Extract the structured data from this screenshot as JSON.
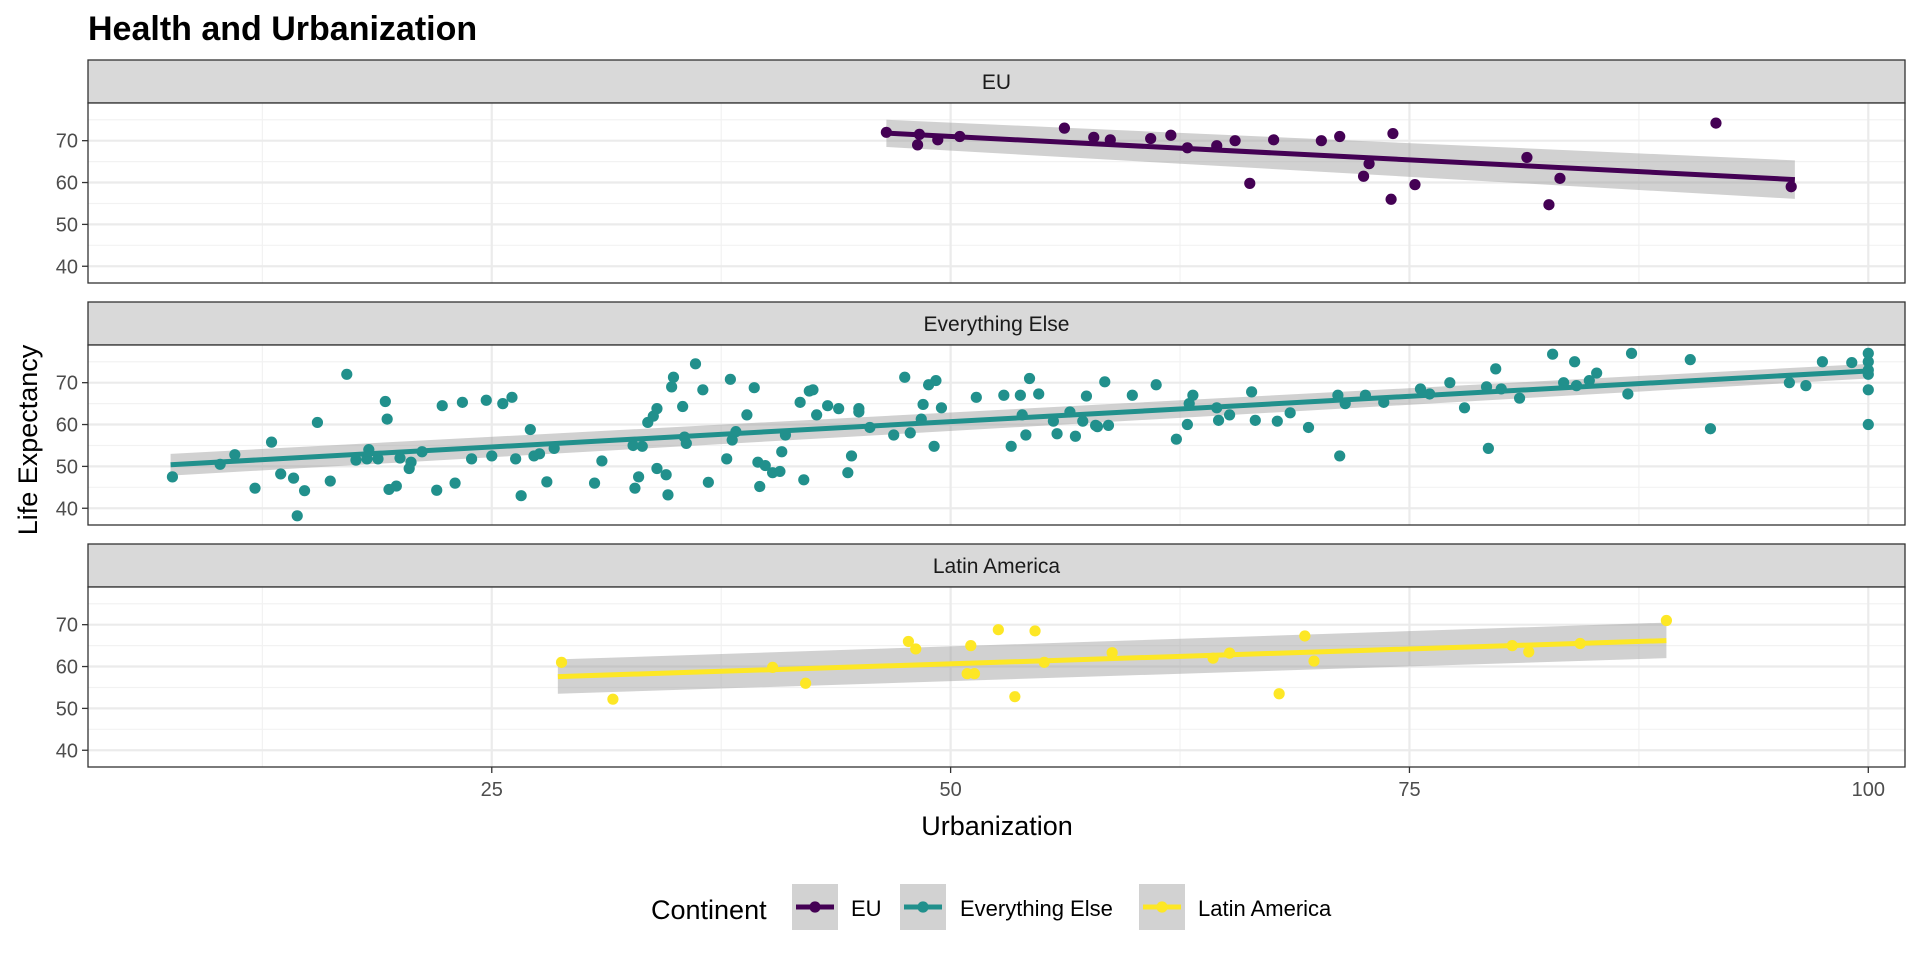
{
  "chart_data": {
    "type": "scatter",
    "title": "Health and Urbanization",
    "xlabel": "Urbanization",
    "ylabel": "Life Expectancy",
    "xlim": [
      3,
      102
    ],
    "ylim": [
      36,
      79
    ],
    "x_ticks": [
      25,
      50,
      75,
      100
    ],
    "y_ticks": [
      40,
      50,
      60,
      70
    ],
    "grid": true,
    "legend": {
      "title": "Continent",
      "position": "bottom"
    },
    "facets": [
      {
        "name": "EU",
        "color": "#440154",
        "trend": {
          "x": [
            46.5,
            96
          ],
          "y": [
            71.8,
            60.7
          ]
        },
        "band": {
          "x": [
            46.5,
            96
          ],
          "upper": [
            75.0,
            65.3
          ],
          "lower": [
            68.5,
            56.1
          ]
        },
        "points": [
          [
            46.5,
            72
          ],
          [
            48.3,
            71.5
          ],
          [
            48.2,
            69
          ],
          [
            49.3,
            70.2
          ],
          [
            50.5,
            71
          ],
          [
            56.2,
            73
          ],
          [
            57.8,
            70.8
          ],
          [
            58.7,
            70.2
          ],
          [
            60.9,
            70.5
          ],
          [
            62,
            71.3
          ],
          [
            62.9,
            68.3
          ],
          [
            64.5,
            68.8
          ],
          [
            65.5,
            70
          ],
          [
            66.3,
            59.8
          ],
          [
            67.6,
            70.2
          ],
          [
            70.2,
            70
          ],
          [
            71.2,
            71
          ],
          [
            72.5,
            61.5
          ],
          [
            72.8,
            64.5
          ],
          [
            74,
            56
          ],
          [
            74.1,
            71.7
          ],
          [
            75.3,
            59.5
          ],
          [
            81.4,
            66
          ],
          [
            82.6,
            54.7
          ],
          [
            83.2,
            61
          ],
          [
            91.7,
            74.2
          ],
          [
            95.8,
            59
          ]
        ]
      },
      {
        "name": "Everything Else",
        "color": "#21908C",
        "trend": {
          "x": [
            7.5,
            100
          ],
          "y": [
            50.4,
            72.8
          ]
        },
        "band": {
          "x": [
            7.5,
            100
          ],
          "upper": [
            53.0,
            74.5
          ],
          "lower": [
            47.8,
            71.0
          ]
        },
        "points": [
          [
            7.6,
            47.5
          ],
          [
            10.2,
            50.5
          ],
          [
            11,
            52.8
          ],
          [
            12.1,
            44.8
          ],
          [
            13,
            55.8
          ],
          [
            13.5,
            48.2
          ],
          [
            14.2,
            47.2
          ],
          [
            14.4,
            38.2
          ],
          [
            14.8,
            44.2
          ],
          [
            15.5,
            60.5
          ],
          [
            16.2,
            46.5
          ],
          [
            17.1,
            72
          ],
          [
            17.6,
            51.5
          ],
          [
            18.2,
            51.8
          ],
          [
            18.3,
            54
          ],
          [
            18.8,
            51.8
          ],
          [
            19.2,
            65.5
          ],
          [
            19.3,
            61.3
          ],
          [
            19.4,
            44.5
          ],
          [
            19.8,
            45.3
          ],
          [
            20,
            52
          ],
          [
            20.5,
            49.5
          ],
          [
            20.6,
            51
          ],
          [
            21.2,
            53.5
          ],
          [
            22,
            44.3
          ],
          [
            22.3,
            64.5
          ],
          [
            23,
            46
          ],
          [
            23.4,
            65.3
          ],
          [
            23.9,
            51.8
          ],
          [
            24.7,
            65.8
          ],
          [
            25,
            52.5
          ],
          [
            25.6,
            65
          ],
          [
            26.1,
            66.5
          ],
          [
            26.3,
            51.8
          ],
          [
            26.6,
            43
          ],
          [
            27.1,
            58.8
          ],
          [
            27.3,
            52.5
          ],
          [
            27.6,
            53
          ],
          [
            28,
            46.3
          ],
          [
            28.4,
            54.3
          ],
          [
            30.6,
            46
          ],
          [
            31,
            51.3
          ],
          [
            32.7,
            55
          ],
          [
            32.8,
            44.8
          ],
          [
            33,
            47.5
          ],
          [
            33.2,
            54.8
          ],
          [
            33.5,
            60.5
          ],
          [
            33.8,
            62
          ],
          [
            34,
            63.8
          ],
          [
            34,
            49.5
          ],
          [
            34.5,
            48
          ],
          [
            34.6,
            43.2
          ],
          [
            34.8,
            69
          ],
          [
            34.9,
            71.3
          ],
          [
            35.4,
            64.3
          ],
          [
            35.5,
            57
          ],
          [
            35.6,
            55.5
          ],
          [
            36.1,
            74.5
          ],
          [
            36.5,
            68.3
          ],
          [
            36.8,
            46.2
          ],
          [
            37.8,
            51.8
          ],
          [
            38,
            70.8
          ],
          [
            38.1,
            56.3
          ],
          [
            38.3,
            58.3
          ],
          [
            38.9,
            62.3
          ],
          [
            39.3,
            68.8
          ],
          [
            39.5,
            51
          ],
          [
            39.6,
            45.2
          ],
          [
            39.9,
            50.2
          ],
          [
            40.3,
            48.5
          ],
          [
            40.7,
            48.8
          ],
          [
            40.8,
            53.5
          ],
          [
            41,
            57.5
          ],
          [
            41.8,
            65.3
          ],
          [
            42,
            46.8
          ],
          [
            42.3,
            68
          ],
          [
            42.5,
            68.3
          ],
          [
            42.7,
            62.3
          ],
          [
            43.3,
            64.5
          ],
          [
            43.9,
            63.8
          ],
          [
            44.4,
            48.5
          ],
          [
            44.6,
            52.5
          ],
          [
            45,
            63
          ],
          [
            45,
            63.8
          ],
          [
            45.6,
            59.3
          ],
          [
            46.9,
            57.5
          ],
          [
            47.5,
            71.3
          ],
          [
            47.8,
            58
          ],
          [
            48.4,
            61.3
          ],
          [
            48.5,
            64.8
          ],
          [
            48.8,
            69.5
          ],
          [
            49.1,
            54.8
          ],
          [
            49.2,
            70.5
          ],
          [
            49.5,
            64
          ],
          [
            51.4,
            66.5
          ],
          [
            52.9,
            67
          ],
          [
            53.3,
            54.8
          ],
          [
            53.8,
            67
          ],
          [
            53.9,
            62.3
          ],
          [
            54.1,
            57.5
          ],
          [
            54.3,
            71
          ],
          [
            54.8,
            67.3
          ],
          [
            55.6,
            60.8
          ],
          [
            55.8,
            57.8
          ],
          [
            56.5,
            63
          ],
          [
            56.8,
            57.2
          ],
          [
            57.2,
            60.8
          ],
          [
            57.4,
            66.8
          ],
          [
            57.9,
            59.8
          ],
          [
            58,
            59.5
          ],
          [
            58.4,
            70.2
          ],
          [
            58.6,
            59.8
          ],
          [
            59.9,
            67
          ],
          [
            61.2,
            69.5
          ],
          [
            62.3,
            56.5
          ],
          [
            62.9,
            60
          ],
          [
            63,
            65
          ],
          [
            63.2,
            67
          ],
          [
            64.5,
            64
          ],
          [
            64.6,
            61
          ],
          [
            65.2,
            62.3
          ],
          [
            66.4,
            67.8
          ],
          [
            66.6,
            61
          ],
          [
            67.8,
            60.8
          ],
          [
            68.5,
            62.8
          ],
          [
            69.5,
            59.3
          ],
          [
            71.1,
            67
          ],
          [
            71.2,
            52.5
          ],
          [
            71.5,
            65
          ],
          [
            72.6,
            67
          ],
          [
            73.6,
            65.3
          ],
          [
            75.6,
            68.5
          ],
          [
            76.1,
            67.3
          ],
          [
            77.2,
            70
          ],
          [
            78,
            64
          ],
          [
            79.2,
            69
          ],
          [
            79.3,
            54.3
          ],
          [
            79.7,
            73.3
          ],
          [
            80,
            68.5
          ],
          [
            81,
            66.3
          ],
          [
            82.8,
            76.8
          ],
          [
            83.4,
            70
          ],
          [
            84,
            75
          ],
          [
            84.1,
            69.3
          ],
          [
            84.8,
            70.5
          ],
          [
            85.2,
            72.3
          ],
          [
            86.9,
            67.3
          ],
          [
            87.1,
            77
          ],
          [
            90.3,
            75.5
          ],
          [
            91.4,
            59
          ],
          [
            95.7,
            70
          ],
          [
            96.6,
            69.3
          ],
          [
            97.5,
            75
          ],
          [
            99.1,
            74.8
          ],
          [
            100,
            77
          ],
          [
            100,
            75
          ],
          [
            100,
            73
          ],
          [
            100,
            72
          ],
          [
            100,
            68.3
          ],
          [
            100,
            60
          ]
        ]
      },
      {
        "name": "Latin America",
        "color": "#FDE725",
        "trend": {
          "x": [
            28.6,
            89
          ],
          "y": [
            57.6,
            66.2
          ]
        },
        "band": {
          "x": [
            28.6,
            89
          ],
          "upper": [
            61.7,
            70.5
          ],
          "lower": [
            53.5,
            62.0
          ]
        },
        "points": [
          [
            28.8,
            61
          ],
          [
            31.6,
            52.2
          ],
          [
            40.3,
            59.8
          ],
          [
            42.1,
            56
          ],
          [
            47.7,
            66
          ],
          [
            48.1,
            64.2
          ],
          [
            50.9,
            58.3
          ],
          [
            51.1,
            65
          ],
          [
            51.3,
            58.3
          ],
          [
            52.6,
            68.8
          ],
          [
            53.5,
            52.8
          ],
          [
            54.6,
            68.5
          ],
          [
            55.1,
            61
          ],
          [
            58.8,
            63.3
          ],
          [
            64.3,
            62
          ],
          [
            65.2,
            63.2
          ],
          [
            67.9,
            53.5
          ],
          [
            69.3,
            67.3
          ],
          [
            69.8,
            61.3
          ],
          [
            80.6,
            65
          ],
          [
            81.5,
            63.5
          ],
          [
            84.3,
            65.5
          ],
          [
            89,
            71
          ]
        ]
      }
    ]
  }
}
